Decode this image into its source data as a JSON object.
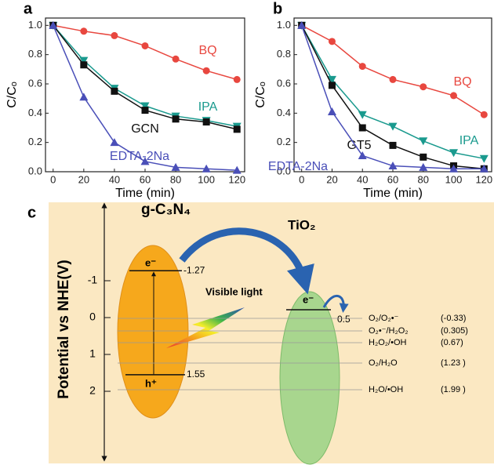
{
  "chart_data": [
    {
      "type": "line",
      "panel": "a",
      "x_label": "Time (min)",
      "y_label": "C/Cₒ",
      "x": [
        0,
        20,
        40,
        60,
        80,
        100,
        120
      ],
      "xlim": [
        -5,
        125
      ],
      "xticks": [
        0,
        20,
        40,
        60,
        80,
        100,
        120
      ],
      "ylim": [
        0,
        1.05
      ],
      "yticks": [
        {
          "value": 0,
          "label": "0.0"
        },
        0.2,
        0.4,
        0.6,
        0.8,
        {
          "value": 1,
          "label": "1.0"
        }
      ],
      "series": [
        {
          "name": "BQ",
          "color": "#e8473f",
          "marker": "circle",
          "values": [
            1.0,
            0.96,
            0.93,
            0.86,
            0.77,
            0.69,
            0.63
          ]
        },
        {
          "name": "IPA",
          "color": "#1a9a8e",
          "marker": "triangle-down",
          "values": [
            1.0,
            0.76,
            0.57,
            0.45,
            0.38,
            0.35,
            0.31
          ]
        },
        {
          "name": "GCN",
          "color": "#111111",
          "marker": "square",
          "values": [
            1.0,
            0.73,
            0.55,
            0.42,
            0.36,
            0.34,
            0.29
          ]
        },
        {
          "name": "EDTA-2Na",
          "color": "#4a4fb8",
          "marker": "triangle-up",
          "values": [
            1.0,
            0.51,
            0.2,
            0.07,
            0.03,
            0.02,
            0.01
          ]
        }
      ]
    },
    {
      "type": "line",
      "panel": "b",
      "x_label": "Time (min)",
      "y_label": "C/Cₒ",
      "x": [
        0,
        20,
        40,
        60,
        80,
        100,
        120
      ],
      "xlim": [
        -5,
        125
      ],
      "xticks": [
        0,
        20,
        40,
        60,
        80,
        100,
        120
      ],
      "ylim": [
        0,
        1.05
      ],
      "yticks": [
        {
          "value": 0,
          "label": "0.0"
        },
        0.2,
        0.4,
        0.6,
        0.8,
        {
          "value": 1,
          "label": "1.0"
        }
      ],
      "series": [
        {
          "name": "BQ",
          "color": "#e8473f",
          "marker": "circle",
          "values": [
            1.0,
            0.89,
            0.72,
            0.63,
            0.58,
            0.52,
            0.39
          ]
        },
        {
          "name": "IPA",
          "color": "#1a9a8e",
          "marker": "triangle-down",
          "values": [
            1.0,
            0.63,
            0.39,
            0.31,
            0.21,
            0.13,
            0.09
          ]
        },
        {
          "name": "GT5",
          "color": "#111111",
          "marker": "square",
          "values": [
            1.0,
            0.59,
            0.3,
            0.18,
            0.1,
            0.04,
            0.02
          ]
        },
        {
          "name": "EDTA-2Na",
          "color": "#4a4fb8",
          "marker": "triangle-up",
          "values": [
            1.0,
            0.41,
            0.11,
            0.04,
            0.03,
            0.02,
            0.02
          ]
        }
      ]
    }
  ],
  "diagram": {
    "panel": "c",
    "y_label": "Potential vs NHE(V)",
    "yticks": [
      -1,
      0,
      1,
      2
    ],
    "gcn": {
      "name": "g-C₃N₄",
      "electron": "e⁻",
      "hole": "h⁺",
      "cb": -1.27,
      "vb": 1.55
    },
    "tio2": {
      "name": "TiO₂",
      "electron": "e⁻",
      "shift": 0.5
    },
    "light": "Visible light",
    "reactions": [
      {
        "couple": "O₂/O₂•⁻",
        "potential": "(-0.33)"
      },
      {
        "couple": "O₂•⁻/H₂O₂",
        "potential": "(0.305)"
      },
      {
        "couple": "H₂O₂/•OH",
        "potential": "(0.67)"
      },
      {
        "couple": "O₂/H₂O",
        "potential": "(1.23 )"
      },
      {
        "couple": "H₂O/•OH",
        "potential": "(1.99 )"
      }
    ]
  }
}
